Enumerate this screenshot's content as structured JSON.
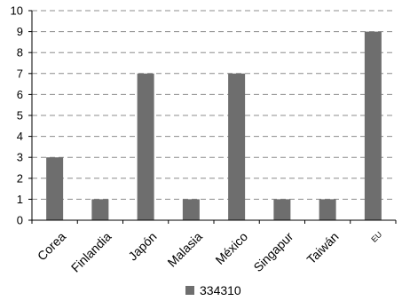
{
  "chart_data": {
    "type": "bar",
    "title": "",
    "xlabel": "",
    "ylabel": "",
    "categories": [
      "Corea",
      "Finlandia",
      "Japón",
      "Malasia",
      "México",
      "Singapur",
      "Taiwán",
      "EU"
    ],
    "series": [
      {
        "name": "334310",
        "values": [
          3,
          1,
          7,
          1,
          7,
          1,
          1,
          9
        ],
        "color": "#6e6e6e"
      }
    ],
    "ylim": [
      0,
      10
    ],
    "yticks": [
      0,
      1,
      2,
      3,
      4,
      5,
      6,
      7,
      8,
      9,
      10
    ],
    "grid": true,
    "grid_style": "dashed",
    "legend_position": "bottom"
  }
}
